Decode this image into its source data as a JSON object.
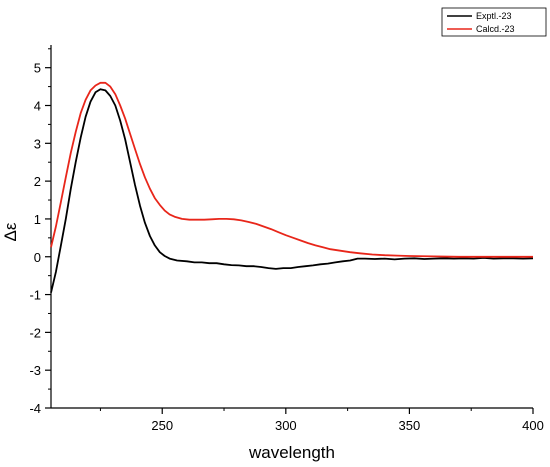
{
  "chart_data": {
    "type": "line",
    "title": "",
    "xlabel": "wavelength",
    "ylabel": "Δε",
    "xlim": [
      205,
      400
    ],
    "ylim": [
      -4,
      5.6
    ],
    "x_ticks": [
      250,
      300,
      350,
      400
    ],
    "y_ticks": [
      -4,
      -3,
      -2,
      -1,
      0,
      1,
      2,
      3,
      4,
      5
    ],
    "grid": false,
    "legend_position": "top-right",
    "series": [
      {
        "name": "Exptl.-23",
        "color": "#000000",
        "points": [
          [
            205,
            -0.95
          ],
          [
            207,
            -0.4
          ],
          [
            209,
            0.3
          ],
          [
            211,
            1.0
          ],
          [
            213,
            1.8
          ],
          [
            215,
            2.5
          ],
          [
            217,
            3.15
          ],
          [
            219,
            3.7
          ],
          [
            221,
            4.1
          ],
          [
            223,
            4.35
          ],
          [
            225,
            4.43
          ],
          [
            227,
            4.4
          ],
          [
            229,
            4.25
          ],
          [
            231,
            4.0
          ],
          [
            233,
            3.6
          ],
          [
            235,
            3.1
          ],
          [
            237,
            2.5
          ],
          [
            239,
            1.9
          ],
          [
            241,
            1.35
          ],
          [
            243,
            0.9
          ],
          [
            245,
            0.55
          ],
          [
            247,
            0.3
          ],
          [
            249,
            0.12
          ],
          [
            251,
            0.02
          ],
          [
            253,
            -0.05
          ],
          [
            256,
            -0.1
          ],
          [
            260,
            -0.12
          ],
          [
            263,
            -0.15
          ],
          [
            266,
            -0.15
          ],
          [
            269,
            -0.17
          ],
          [
            272,
            -0.17
          ],
          [
            275,
            -0.2
          ],
          [
            278,
            -0.22
          ],
          [
            281,
            -0.23
          ],
          [
            284,
            -0.25
          ],
          [
            287,
            -0.25
          ],
          [
            290,
            -0.27
          ],
          [
            293,
            -0.3
          ],
          [
            296,
            -0.32
          ],
          [
            299,
            -0.3
          ],
          [
            302,
            -0.3
          ],
          [
            305,
            -0.27
          ],
          [
            308,
            -0.25
          ],
          [
            311,
            -0.23
          ],
          [
            314,
            -0.2
          ],
          [
            317,
            -0.18
          ],
          [
            320,
            -0.15
          ],
          [
            323,
            -0.12
          ],
          [
            326,
            -0.1
          ],
          [
            329,
            -0.05
          ],
          [
            332,
            -0.05
          ],
          [
            336,
            -0.06
          ],
          [
            340,
            -0.05
          ],
          [
            344,
            -0.07
          ],
          [
            348,
            -0.05
          ],
          [
            352,
            -0.04
          ],
          [
            356,
            -0.06
          ],
          [
            360,
            -0.05
          ],
          [
            364,
            -0.04
          ],
          [
            368,
            -0.05
          ],
          [
            372,
            -0.04
          ],
          [
            376,
            -0.05
          ],
          [
            380,
            -0.03
          ],
          [
            384,
            -0.05
          ],
          [
            388,
            -0.04
          ],
          [
            392,
            -0.04
          ],
          [
            396,
            -0.05
          ],
          [
            400,
            -0.04
          ]
        ]
      },
      {
        "name": "Calcd.-23",
        "color": "#e8261a",
        "points": [
          [
            205,
            0.25
          ],
          [
            207,
            0.8
          ],
          [
            209,
            1.45
          ],
          [
            211,
            2.1
          ],
          [
            213,
            2.75
          ],
          [
            215,
            3.3
          ],
          [
            217,
            3.8
          ],
          [
            219,
            4.15
          ],
          [
            221,
            4.4
          ],
          [
            223,
            4.53
          ],
          [
            225,
            4.6
          ],
          [
            227,
            4.6
          ],
          [
            229,
            4.5
          ],
          [
            231,
            4.3
          ],
          [
            233,
            4.0
          ],
          [
            235,
            3.65
          ],
          [
            237,
            3.25
          ],
          [
            239,
            2.85
          ],
          [
            241,
            2.45
          ],
          [
            243,
            2.1
          ],
          [
            245,
            1.8
          ],
          [
            247,
            1.55
          ],
          [
            249,
            1.37
          ],
          [
            251,
            1.22
          ],
          [
            253,
            1.12
          ],
          [
            255,
            1.06
          ],
          [
            258,
            1.0
          ],
          [
            261,
            0.98
          ],
          [
            264,
            0.98
          ],
          [
            267,
            0.98
          ],
          [
            270,
            0.99
          ],
          [
            273,
            1.0
          ],
          [
            276,
            1.0
          ],
          [
            279,
            0.99
          ],
          [
            282,
            0.96
          ],
          [
            285,
            0.92
          ],
          [
            288,
            0.87
          ],
          [
            291,
            0.8
          ],
          [
            294,
            0.73
          ],
          [
            297,
            0.65
          ],
          [
            300,
            0.57
          ],
          [
            303,
            0.5
          ],
          [
            306,
            0.43
          ],
          [
            309,
            0.36
          ],
          [
            312,
            0.3
          ],
          [
            315,
            0.25
          ],
          [
            318,
            0.2
          ],
          [
            322,
            0.16
          ],
          [
            326,
            0.12
          ],
          [
            330,
            0.09
          ],
          [
            335,
            0.06
          ],
          [
            340,
            0.04
          ],
          [
            345,
            0.03
          ],
          [
            350,
            0.02
          ],
          [
            360,
            0.01
          ],
          [
            370,
            0.0
          ],
          [
            380,
            0.0
          ],
          [
            390,
            0.0
          ],
          [
            400,
            0.0
          ]
        ]
      }
    ]
  }
}
